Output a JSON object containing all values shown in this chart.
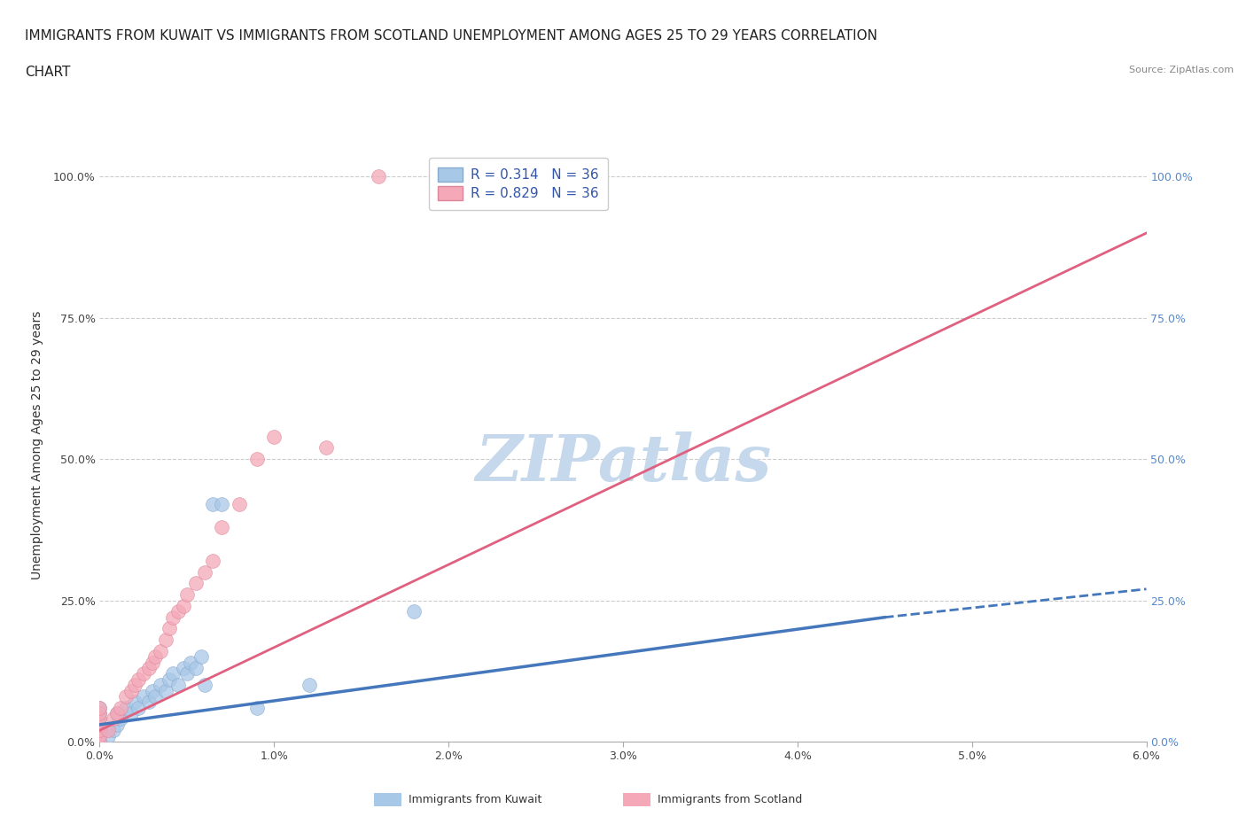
{
  "title_line1": "IMMIGRANTS FROM KUWAIT VS IMMIGRANTS FROM SCOTLAND UNEMPLOYMENT AMONG AGES 25 TO 29 YEARS CORRELATION",
  "title_line2": "CHART",
  "source": "Source: ZipAtlas.com",
  "xlabel_range": [
    0.0,
    0.06
  ],
  "ylabel_range": [
    0.0,
    1.05
  ],
  "watermark": "ZIPatlas",
  "legend_r1": "R = 0.314   N = 36",
  "legend_r2": "R = 0.829   N = 36",
  "legend_label1": "Immigrants from Kuwait",
  "legend_label2": "Immigrants from Scotland",
  "color_kuwait": "#a8c8e8",
  "color_scotland": "#f4a8b8",
  "line_color_kuwait": "#4477bb",
  "line_color_scotland": "#e06080",
  "scatter_kuwait_x": [
    0.0,
    0.0,
    0.0,
    0.0,
    0.0,
    0.0,
    0.0,
    0.0005,
    0.0008,
    0.001,
    0.001,
    0.0012,
    0.0015,
    0.0018,
    0.002,
    0.0022,
    0.0025,
    0.0028,
    0.003,
    0.0032,
    0.0035,
    0.0038,
    0.004,
    0.0042,
    0.0045,
    0.0048,
    0.005,
    0.0052,
    0.0055,
    0.0058,
    0.006,
    0.0065,
    0.007,
    0.009,
    0.012,
    0.018
  ],
  "scatter_kuwait_y": [
    0.0,
    0.01,
    0.02,
    0.03,
    0.04,
    0.05,
    0.06,
    0.01,
    0.02,
    0.03,
    0.05,
    0.04,
    0.06,
    0.05,
    0.07,
    0.06,
    0.08,
    0.07,
    0.09,
    0.08,
    0.1,
    0.09,
    0.11,
    0.12,
    0.1,
    0.13,
    0.12,
    0.14,
    0.13,
    0.15,
    0.1,
    0.42,
    0.42,
    0.06,
    0.1,
    0.23
  ],
  "scatter_scotland_x": [
    0.0,
    0.0,
    0.0,
    0.0,
    0.0,
    0.0,
    0.0,
    0.0005,
    0.0008,
    0.001,
    0.0012,
    0.0015,
    0.0018,
    0.002,
    0.0022,
    0.0025,
    0.0028,
    0.003,
    0.0032,
    0.0035,
    0.0038,
    0.004,
    0.0042,
    0.0045,
    0.0048,
    0.005,
    0.0055,
    0.006,
    0.0065,
    0.007,
    0.008,
    0.009,
    0.01,
    0.013,
    0.016,
    0.02
  ],
  "scatter_scotland_y": [
    0.0,
    0.01,
    0.02,
    0.03,
    0.04,
    0.05,
    0.06,
    0.02,
    0.04,
    0.05,
    0.06,
    0.08,
    0.09,
    0.1,
    0.11,
    0.12,
    0.13,
    0.14,
    0.15,
    0.16,
    0.18,
    0.2,
    0.22,
    0.23,
    0.24,
    0.26,
    0.28,
    0.3,
    0.32,
    0.38,
    0.42,
    0.5,
    0.54,
    0.52,
    1.0,
    1.0
  ],
  "trendline_scotland_x0": 0.0,
  "trendline_scotland_x1": 0.06,
  "trendline_scotland_y0": 0.02,
  "trendline_scotland_y1": 0.9,
  "trendline_kuwait_solid_x0": 0.0,
  "trendline_kuwait_solid_x1": 0.045,
  "trendline_kuwait_solid_y0": 0.03,
  "trendline_kuwait_solid_y1": 0.22,
  "trendline_kuwait_dash_x0": 0.045,
  "trendline_kuwait_dash_x1": 0.06,
  "trendline_kuwait_dash_y0": 0.22,
  "trendline_kuwait_dash_y1": 0.27,
  "grid_color": "#cccccc",
  "title_fontsize": 11,
  "tick_fontsize": 9,
  "watermark_color": "#c5d8ec",
  "watermark_fontsize": 52,
  "right_tick_color": "#5588cc",
  "legend_text_color": "#3355aa"
}
